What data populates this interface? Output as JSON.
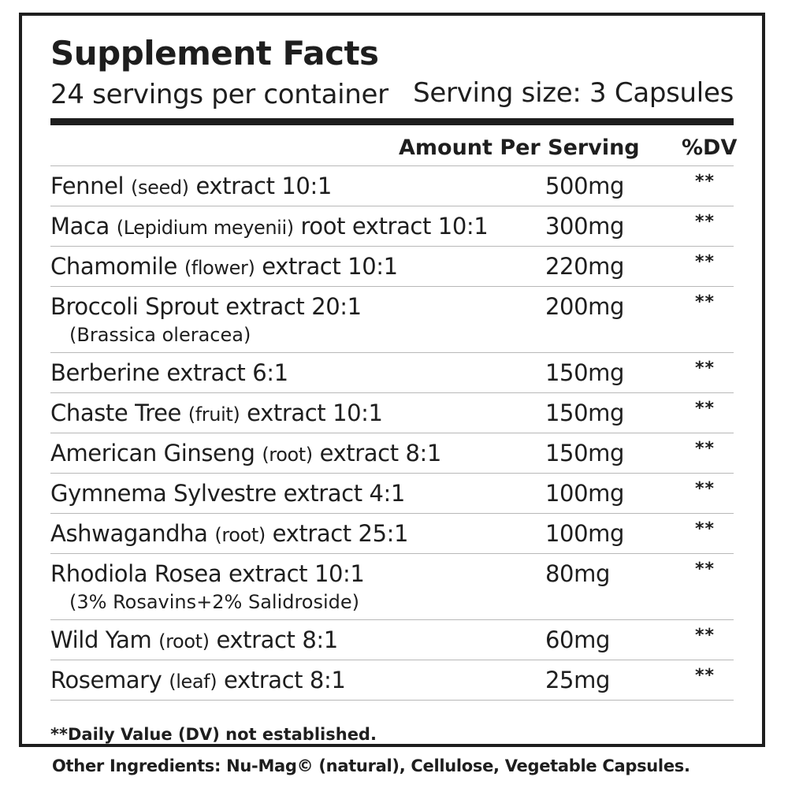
{
  "label": {
    "title": "Supplement Facts",
    "servings_per_container": "24 servings per container",
    "serving_size": "Serving size: 3 Capsules",
    "column_amount": "Amount Per Serving",
    "column_dv": "%DV",
    "ingredients": [
      {
        "name": "Fennel",
        "part": "(seed)",
        "rest": "extract 10:1",
        "sub": "",
        "amount": "500mg",
        "dv": "**"
      },
      {
        "name": "Maca",
        "part": "(Lepidium meyenii)",
        "rest": "root extract 10:1",
        "sub": "",
        "amount": "300mg",
        "dv": "**"
      },
      {
        "name": "Chamomile",
        "part": "(flower)",
        "rest": "extract 10:1",
        "sub": "",
        "amount": "220mg",
        "dv": "**"
      },
      {
        "name": "Broccoli Sprout extract 20:1",
        "part": "",
        "rest": "",
        "sub": "(Brassica oleracea)",
        "amount": "200mg",
        "dv": "**"
      },
      {
        "name": "Berberine extract 6:1",
        "part": "",
        "rest": "",
        "sub": "",
        "amount": "150mg",
        "dv": "**"
      },
      {
        "name": "Chaste Tree",
        "part": "(fruit)",
        "rest": "extract 10:1",
        "sub": "",
        "amount": "150mg",
        "dv": "**"
      },
      {
        "name": "American Ginseng",
        "part": "(root)",
        "rest": "extract 8:1",
        "sub": "",
        "amount": "150mg",
        "dv": "**"
      },
      {
        "name": "Gymnema Sylvestre extract 4:1",
        "part": "",
        "rest": "",
        "sub": "",
        "amount": "100mg",
        "dv": "**"
      },
      {
        "name": "Ashwagandha",
        "part": "(root)",
        "rest": "extract 25:1",
        "sub": "",
        "amount": "100mg",
        "dv": "**"
      },
      {
        "name": "Rhodiola Rosea extract 10:1",
        "part": "",
        "rest": "",
        "sub": "(3% Rosavins+2% Salidroside)",
        "amount": "80mg",
        "dv": "**"
      },
      {
        "name": "Wild Yam",
        "part": "(root)",
        "rest": "extract 8:1",
        "sub": "",
        "amount": "60mg",
        "dv": "**"
      },
      {
        "name": "Rosemary",
        "part": "(leaf)",
        "rest": "extract 8:1",
        "sub": "",
        "amount": "25mg",
        "dv": "**"
      }
    ],
    "footnote": "**Daily Value (DV) not established.",
    "other_ingredients": "Other Ingredients: Nu-Mag© (natural), Cellulose, Vegetable Capsules."
  },
  "colors": {
    "ink": "#1e1e1e",
    "row_rule": "#b8b8b8",
    "background": "#ffffff"
  }
}
